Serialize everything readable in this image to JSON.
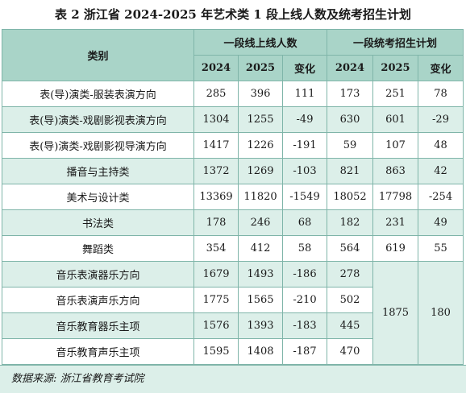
{
  "title": "表 2  浙江省 2024-2025 年艺术类 1 段上线人数及统考招生计划",
  "header": {
    "category": "类别",
    "group1": "一段线上线人数",
    "group2": "一段统考招生计划",
    "sub": [
      "2024",
      "2025",
      "变化",
      "2024",
      "2025",
      "变化"
    ]
  },
  "rows": [
    {
      "name": "表(导)演类-服装表演方向",
      "v": [
        "285",
        "396",
        "111",
        "173",
        "251",
        "78"
      ]
    },
    {
      "name": "表(导)演类-戏剧影视表演方向",
      "v": [
        "1304",
        "1255",
        "-49",
        "630",
        "601",
        "-29"
      ]
    },
    {
      "name": "表(导)演类-戏剧影视导演方向",
      "v": [
        "1417",
        "1226",
        "-191",
        "59",
        "107",
        "48"
      ]
    },
    {
      "name": "播音与主持类",
      "v": [
        "1372",
        "1269",
        "-103",
        "821",
        "863",
        "42"
      ]
    },
    {
      "name": "美术与设计类",
      "v": [
        "13369",
        "11820",
        "-1549",
        "18052",
        "17798",
        "-254"
      ]
    },
    {
      "name": "书法类",
      "v": [
        "178",
        "246",
        "68",
        "182",
        "231",
        "49"
      ]
    },
    {
      "name": "舞蹈类",
      "v": [
        "354",
        "412",
        "58",
        "564",
        "619",
        "55"
      ]
    },
    {
      "name": "音乐表演器乐方向",
      "v": [
        "1679",
        "1493",
        "-186",
        "278"
      ]
    },
    {
      "name": "音乐表演声乐方向",
      "v": [
        "1775",
        "1565",
        "-210",
        "502"
      ]
    },
    {
      "name": "音乐教育器乐主项",
      "v": [
        "1576",
        "1393",
        "-183",
        "445"
      ]
    },
    {
      "name": "音乐教育声乐主项",
      "v": [
        "1595",
        "1408",
        "-187",
        "470"
      ]
    }
  ],
  "music_merged": {
    "plan_2025": "1875",
    "change": "180"
  },
  "source": "数据来源: 浙江省教育考试院"
}
